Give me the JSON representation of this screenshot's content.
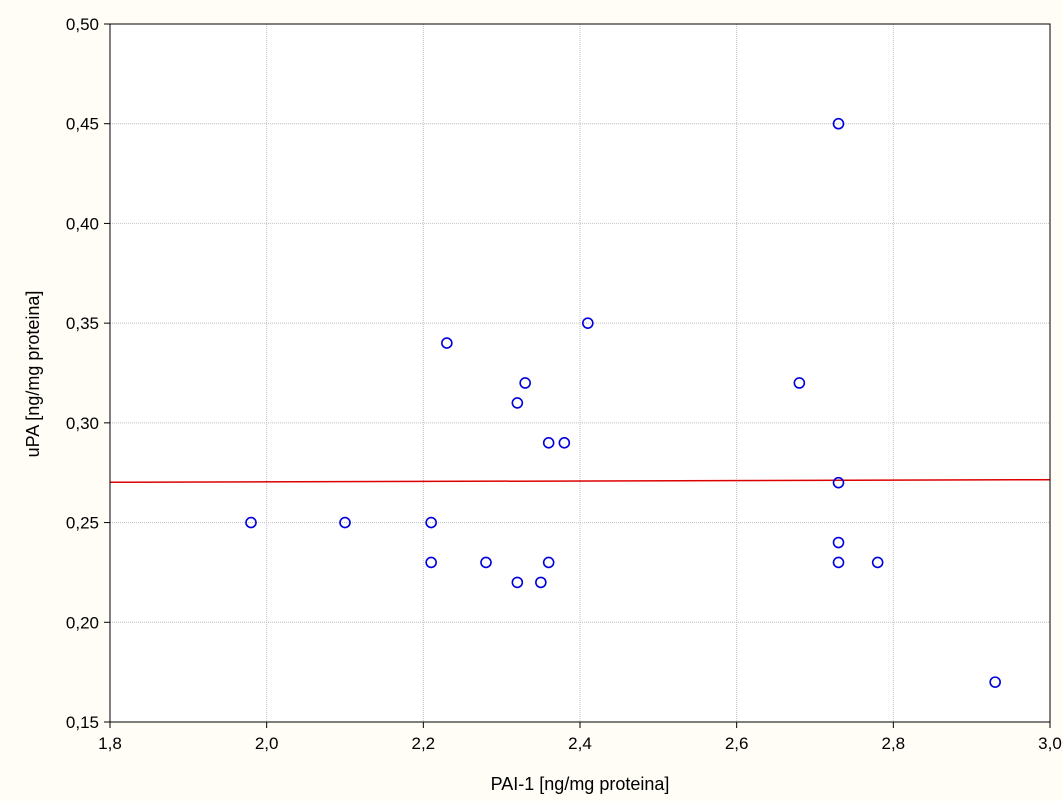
{
  "chart_data": {
    "type": "scatter",
    "xlabel": "PAI-1 [ng/mg proteina]",
    "ylabel": "uPA [ng/mg proteina]",
    "xlim": [
      1.8,
      3.0
    ],
    "ylim": [
      0.15,
      0.5
    ],
    "xticks": [
      1.8,
      2.0,
      2.2,
      2.4,
      2.6,
      2.8,
      3.0
    ],
    "yticks": [
      0.15,
      0.2,
      0.25,
      0.3,
      0.35,
      0.4,
      0.45,
      0.5
    ],
    "xtick_labels": [
      "1,8",
      "2,0",
      "2,2",
      "2,4",
      "2,6",
      "2,8",
      "3,0"
    ],
    "ytick_labels": [
      "0,15",
      "0,20",
      "0,25",
      "0,30",
      "0,35",
      "0,40",
      "0,45",
      "0,50"
    ],
    "grid": true,
    "marker_color": "#0000dd",
    "fit_line_color": "#dd0000",
    "plot_background": "#ffffff",
    "page_background": "#fffdf6",
    "points": [
      {
        "x": 1.98,
        "y": 0.25
      },
      {
        "x": 2.1,
        "y": 0.25
      },
      {
        "x": 2.21,
        "y": 0.25
      },
      {
        "x": 2.21,
        "y": 0.23
      },
      {
        "x": 2.23,
        "y": 0.34
      },
      {
        "x": 2.28,
        "y": 0.23
      },
      {
        "x": 2.32,
        "y": 0.31
      },
      {
        "x": 2.32,
        "y": 0.22
      },
      {
        "x": 2.33,
        "y": 0.32
      },
      {
        "x": 2.35,
        "y": 0.22
      },
      {
        "x": 2.36,
        "y": 0.29
      },
      {
        "x": 2.36,
        "y": 0.23
      },
      {
        "x": 2.38,
        "y": 0.29
      },
      {
        "x": 2.41,
        "y": 0.35
      },
      {
        "x": 2.68,
        "y": 0.32
      },
      {
        "x": 2.73,
        "y": 0.45
      },
      {
        "x": 2.73,
        "y": 0.27
      },
      {
        "x": 2.73,
        "y": 0.24
      },
      {
        "x": 2.73,
        "y": 0.23
      },
      {
        "x": 2.78,
        "y": 0.23
      },
      {
        "x": 2.93,
        "y": 0.17
      }
    ],
    "fit_line": {
      "x": [
        1.8,
        3.0
      ],
      "y": [
        0.2702,
        0.2715
      ]
    }
  }
}
